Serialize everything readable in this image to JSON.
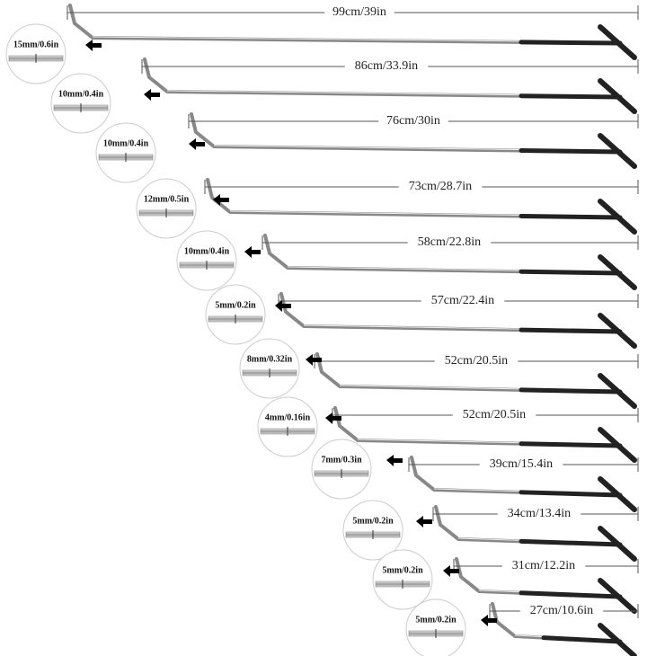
{
  "rods": [
    {
      "length": "99cm/39in",
      "tip": "15mm/0.6in"
    },
    {
      "length": "86cm/33.9in",
      "tip": "10mm/0.4in"
    },
    {
      "length": "76cm/30in",
      "tip": "10mm/0.4in"
    },
    {
      "length": "73cm/28.7in",
      "tip": "12mm/0.5in"
    },
    {
      "length": "58cm/22.8in",
      "tip": "10mm/0.4in"
    },
    {
      "length": "57cm/22.4in",
      "tip": "5mm/0.2in"
    },
    {
      "length": "52cm/20.5in",
      "tip": "8mm/0.32in"
    },
    {
      "length": "52cm/20.5in",
      "tip": "4mm/0.16in"
    },
    {
      "length": "39cm/15.4in",
      "tip": "7mm/0.3in"
    },
    {
      "length": "34cm/13.4in",
      "tip": "5mm/0.2in"
    },
    {
      "length": "31cm/12.2in",
      "tip": "5mm/0.2in"
    },
    {
      "length": "27cm/10.6in",
      "tip": "5mm/0.2in"
    }
  ]
}
